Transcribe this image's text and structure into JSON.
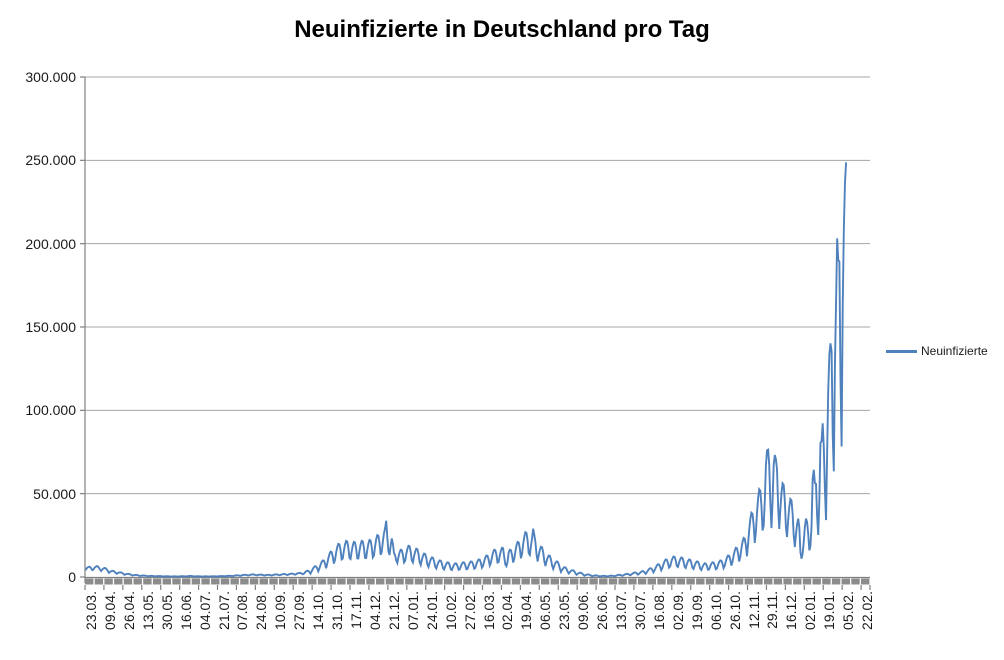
{
  "title": "Neuinfizierte in Deutschland pro Tag",
  "legend": {
    "label": "Neuinfizierte",
    "position": "right"
  },
  "colors": {
    "series_line": "#4F81BD",
    "gridline": "#A6A6A6",
    "axis": "#808080",
    "tick_band": "#8C8C8C",
    "text": "#1a1a1a"
  },
  "chart_data": {
    "type": "line",
    "title": "Neuinfizierte in Deutschland pro Tag",
    "xlabel": "",
    "ylabel": "",
    "ylim": [
      0,
      300000
    ],
    "grid": true,
    "legend_position": "right",
    "y_ticks": [
      {
        "value": 0,
        "label": "0"
      },
      {
        "value": 50000,
        "label": "50.000"
      },
      {
        "value": 100000,
        "label": "100.000"
      },
      {
        "value": 150000,
        "label": "150.000"
      },
      {
        "value": 200000,
        "label": "200.000"
      },
      {
        "value": 250000,
        "label": "250.000"
      },
      {
        "value": 300000,
        "label": "300.000"
      }
    ],
    "x_tick_labels": [
      "23.03.",
      "09.04.",
      "26.04.",
      "13.05.",
      "30.05.",
      "16.06.",
      "04.07.",
      "21.07.",
      "07.08.",
      "24.08.",
      "10.09.",
      "27.09.",
      "14.10.",
      "31.10.",
      "17.11.",
      "04.12.",
      "21.12.",
      "07.01.",
      "24.01.",
      "10.02.",
      "27.02.",
      "16.03.",
      "02.04.",
      "19.04.",
      "06.05.",
      "23.05.",
      "09.06.",
      "26.06.",
      "13.07.",
      "30.07.",
      "16.08.",
      "02.09.",
      "19.09.",
      "06.10.",
      "26.10.",
      "12.11.",
      "29.11.",
      "16.12.",
      "02.01.",
      "19.01.",
      "05.02.",
      "22.02."
    ],
    "x_label_step": 17,
    "total_categories": 705,
    "series": [
      {
        "name": "Neuinfizierte",
        "color": "#4F81BD",
        "start_category": "23.03.",
        "values": [
          4130,
          5230,
          5780,
          6160,
          6050,
          5230,
          4130,
          4350,
          5510,
          6090,
          6500,
          6380,
          5510,
          4350,
          3600,
          4560,
          5040,
          5380,
          5280,
          4560,
          3600,
          2480,
          3140,
          3470,
          3700,
          3630,
          3140,
          2480,
          1880,
          2380,
          2630,
          2800,
          2750,
          2380,
          1880,
          1280,
          1620,
          1790,
          1900,
          1870,
          1620,
          1280,
          830,
          1050,
          1160,
          1230,
          1210,
          1050,
          830,
          600,
          760,
          840,
          900,
          880,
          760,
          600,
          450,
          570,
          630,
          670,
          660,
          570,
          450,
          380,
          480,
          530,
          560,
          550,
          480,
          380,
          300,
          380,
          420,
          450,
          440,
          380,
          300,
          260,
          330,
          370,
          390,
          390,
          330,
          260,
          340,
          430,
          470,
          500,
          500,
          430,
          340,
          410,
          520,
          580,
          620,
          610,
          520,
          410,
          300,
          380,
          420,
          450,
          440,
          380,
          300,
          260,
          330,
          370,
          390,
          390,
          330,
          260,
          300,
          380,
          420,
          450,
          440,
          380,
          300,
          380,
          480,
          530,
          560,
          550,
          480,
          380,
          490,
          620,
          680,
          730,
          720,
          620,
          490,
          680,
          860,
          950,
          1010,
          990,
          860,
          680,
          900,
          1140,
          1260,
          1340,
          1320,
          1140,
          900,
          1050,
          1330,
          1470,
          1570,
          1540,
          1330,
          1050,
          980,
          1240,
          1370,
          1460,
          1430,
          1240,
          980,
          900,
          1140,
          1260,
          1340,
          1320,
          1140,
          900,
          1050,
          1330,
          1470,
          1570,
          1540,
          1330,
          1050,
          1200,
          1520,
          1680,
          1790,
          1760,
          1520,
          1200,
          1350,
          1710,
          1890,
          2020,
          1980,
          1710,
          1350,
          1650,
          2090,
          2310,
          2460,
          2420,
          2090,
          1650,
          1920,
          2720,
          3360,
          3740,
          3680,
          3040,
          1980,
          3300,
          4680,
          5780,
          6440,
          6330,
          5230,
          3410,
          5100,
          7230,
          8930,
          9950,
          9780,
          8080,
          5270,
          7800,
          11050,
          13650,
          15210,
          14950,
          12350,
          8060,
          10200,
          14450,
          17850,
          19890,
          19550,
          16150,
          10540,
          11100,
          15730,
          19430,
          21650,
          21280,
          17580,
          11470,
          10800,
          15300,
          18900,
          21060,
          20700,
          17100,
          11160,
          11100,
          15730,
          19430,
          21650,
          21280,
          17580,
          11470,
          11400,
          16150,
          19950,
          22230,
          21850,
          18050,
          11780,
          12900,
          18280,
          22580,
          25160,
          24730,
          20430,
          13330,
          15000,
          21250,
          26250,
          29250,
          33770,
          23750,
          15500,
          13200,
          18700,
          23100,
          20000,
          14500,
          13000,
          10000,
          8400,
          11900,
          14700,
          16380,
          16100,
          13300,
          8680,
          9600,
          13600,
          16800,
          18720,
          18400,
          15200,
          9920,
          8700,
          12330,
          15230,
          16970,
          16680,
          13780,
          8990,
          7200,
          10200,
          12600,
          14040,
          13800,
          11400,
          7440,
          6000,
          8500,
          10500,
          11700,
          11500,
          9500,
          6200,
          5100,
          7230,
          8930,
          9950,
          9780,
          8080,
          5270,
          4500,
          6380,
          7880,
          8780,
          8630,
          7130,
          4650,
          4200,
          5950,
          7350,
          8190,
          8050,
          6650,
          4340,
          4500,
          6380,
          7880,
          8780,
          8630,
          7130,
          4650,
          4800,
          6800,
          8400,
          9360,
          9200,
          7600,
          4960,
          5400,
          7650,
          9450,
          10530,
          10350,
          8550,
          5580,
          6600,
          9350,
          11550,
          12870,
          12650,
          10450,
          6820,
          8400,
          11900,
          14700,
          16380,
          16100,
          13300,
          8680,
          9000,
          12750,
          15750,
          17550,
          17250,
          12000,
          7500,
          6500,
          9000,
          14700,
          16380,
          16100,
          13300,
          8680,
          10800,
          15300,
          18900,
          21060,
          20700,
          17100,
          11160,
          13800,
          19550,
          24150,
          26910,
          26450,
          21850,
          14260,
          13200,
          18700,
          23100,
          29000,
          25300,
          20900,
          13640,
          9300,
          13180,
          16280,
          18140,
          17830,
          14730,
          9610,
          6600,
          9350,
          11550,
          12870,
          12650,
          10450,
          6820,
          4800,
          6800,
          8400,
          9360,
          9200,
          7600,
          4960,
          3000,
          4250,
          5250,
          5850,
          5750,
          4750,
          3100,
          2100,
          2980,
          3680,
          4100,
          4030,
          3330,
          2170,
          1320,
          1870,
          2310,
          2570,
          2530,
          2090,
          1360,
          780,
          1110,
          1370,
          1520,
          1500,
          1240,
          810,
          480,
          680,
          840,
          940,
          920,
          760,
          500,
          360,
          510,
          630,
          700,
          690,
          570,
          370,
          420,
          600,
          740,
          820,
          810,
          670,
          430,
          660,
          940,
          1160,
          1290,
          1270,
          1050,
          680,
          960,
          1360,
          1680,
          1870,
          1840,
          1520,
          990,
          1380,
          1960,
          2420,
          2690,
          2650,
          2190,
          1430,
          1800,
          2550,
          3150,
          3510,
          3450,
          2850,
          1860,
          2700,
          3830,
          4730,
          5270,
          5180,
          4280,
          2790,
          3900,
          5530,
          6830,
          7610,
          7480,
          6180,
          4030,
          5400,
          7650,
          9450,
          10530,
          10350,
          8550,
          5580,
          6300,
          8930,
          11030,
          12290,
          12080,
          9980,
          6510,
          6000,
          8500,
          10500,
          11700,
          11500,
          9500,
          6200,
          5400,
          7650,
          9450,
          10530,
          10350,
          8550,
          5580,
          4800,
          6800,
          8400,
          9360,
          9200,
          7600,
          4960,
          4200,
          5950,
          7350,
          8190,
          8050,
          6650,
          4340,
          4500,
          6380,
          7880,
          8780,
          8630,
          7130,
          4650,
          5100,
          7230,
          8930,
          9950,
          9780,
          8080,
          5270,
          6600,
          9350,
          11550,
          12870,
          12650,
          10450,
          6820,
          9000,
          12750,
          15750,
          17550,
          17250,
          14250,
          9300,
          12000,
          17000,
          21000,
          23400,
          23000,
          19000,
          12400,
          19800,
          28050,
          34650,
          38610,
          37950,
          31350,
          20460,
          27000,
          38250,
          47250,
          52650,
          51750,
          42750,
          27900,
          30640,
          45330,
          66880,
          75960,
          76410,
          67130,
          44400,
          29360,
          45750,
          67190,
          73210,
          70610,
          64510,
          42060,
          28800,
          40800,
          50400,
          56160,
          55200,
          45600,
          29760,
          24000,
          34000,
          42000,
          46800,
          46000,
          38000,
          24800,
          18000,
          25500,
          31500,
          35000,
          30000,
          15000,
          11000,
          13900,
          21100,
          30000,
          35000,
          33000,
          26000,
          16000,
          18520,
          30560,
          58910,
          64340,
          56340,
          55890,
          36550,
          25260,
          45690,
          80430,
          81420,
          92220,
          78020,
          52500,
          34150,
          74410,
          112320,
          133540,
          140160,
          135460,
          85440,
          63390,
          126960,
          164000,
          203140,
          190150,
          189170,
          118970,
          78320,
          162610,
          208500,
          236120,
          248840
        ]
      }
    ]
  }
}
